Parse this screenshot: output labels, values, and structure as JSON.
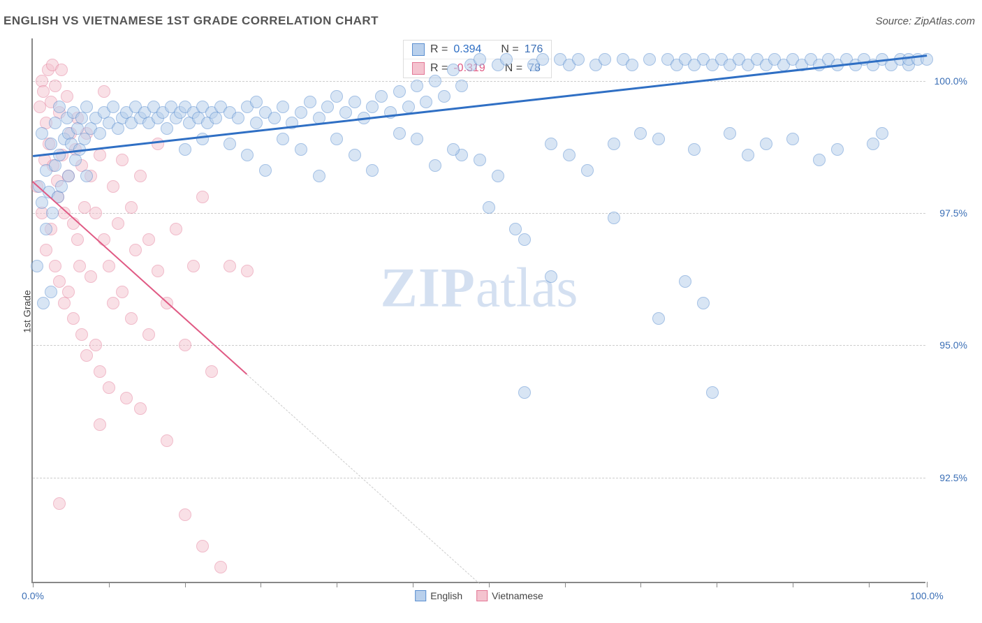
{
  "header": {
    "title": "ENGLISH VS VIETNAMESE 1ST GRADE CORRELATION CHART",
    "source": "Source: ZipAtlas.com"
  },
  "watermark": {
    "zip": "ZIP",
    "atlas": "atlas"
  },
  "chart": {
    "type": "scatter",
    "ylabel": "1st Grade",
    "background_color": "#ffffff",
    "grid_color": "#cccccc",
    "axis_color": "#888888",
    "label_color": "#3b6fb6",
    "xlim": [
      0,
      100
    ],
    "ylim": [
      90.5,
      100.8
    ],
    "xtick_label_first": "0.0%",
    "xtick_label_last": "100.0%",
    "xticks": [
      0,
      8.5,
      17,
      25.5,
      34,
      42.5,
      51,
      59.5,
      68,
      76.5,
      85,
      93.5,
      100
    ],
    "ytick_labels": [
      {
        "y": 92.5,
        "label": "92.5%"
      },
      {
        "y": 95.0,
        "label": "95.0%"
      },
      {
        "y": 97.5,
        "label": "97.5%"
      },
      {
        "y": 100.0,
        "label": "100.0%"
      }
    ],
    "marker_radius": 9,
    "marker_stroke_width": 1.5,
    "series": {
      "english": {
        "label": "English",
        "fill": "#b9d0ec",
        "stroke": "#5b8fd0",
        "fill_opacity": 0.55,
        "trend": {
          "x1": 0,
          "y1": 98.6,
          "x2": 100,
          "y2": 100.5,
          "color": "#2f6fc4",
          "width": 3,
          "dash": "none"
        },
        "r_value": "0.394",
        "n_value": "176",
        "r_color": "#2f6fc4",
        "points": [
          [
            0.5,
            96.5
          ],
          [
            0.7,
            98.0
          ],
          [
            1.0,
            97.7
          ],
          [
            1.0,
            99.0
          ],
          [
            1.2,
            95.8
          ],
          [
            1.5,
            98.3
          ],
          [
            1.5,
            97.2
          ],
          [
            1.8,
            97.9
          ],
          [
            2.0,
            98.8
          ],
          [
            2.0,
            96.0
          ],
          [
            2.2,
            97.5
          ],
          [
            2.5,
            99.2
          ],
          [
            2.5,
            98.4
          ],
          [
            2.8,
            97.8
          ],
          [
            3.0,
            98.6
          ],
          [
            3.0,
            99.5
          ],
          [
            3.2,
            98.0
          ],
          [
            3.5,
            98.9
          ],
          [
            3.8,
            99.3
          ],
          [
            4.0,
            98.2
          ],
          [
            4.0,
            99.0
          ],
          [
            4.3,
            98.8
          ],
          [
            4.5,
            99.4
          ],
          [
            4.8,
            98.5
          ],
          [
            5.0,
            99.1
          ],
          [
            5.2,
            98.7
          ],
          [
            5.5,
            99.3
          ],
          [
            5.8,
            98.9
          ],
          [
            6.0,
            99.5
          ],
          [
            6.0,
            98.2
          ],
          [
            6.5,
            99.1
          ],
          [
            7.0,
            99.3
          ],
          [
            7.5,
            99.0
          ],
          [
            8.0,
            99.4
          ],
          [
            8.5,
            99.2
          ],
          [
            9.0,
            99.5
          ],
          [
            9.5,
            99.1
          ],
          [
            10.0,
            99.3
          ],
          [
            10.5,
            99.4
          ],
          [
            11.0,
            99.2
          ],
          [
            11.5,
            99.5
          ],
          [
            12.0,
            99.3
          ],
          [
            12.5,
            99.4
          ],
          [
            13.0,
            99.2
          ],
          [
            13.5,
            99.5
          ],
          [
            14.0,
            99.3
          ],
          [
            14.5,
            99.4
          ],
          [
            15.0,
            99.1
          ],
          [
            15.5,
            99.5
          ],
          [
            16.0,
            99.3
          ],
          [
            16.5,
            99.4
          ],
          [
            17.0,
            99.5
          ],
          [
            17.5,
            99.2
          ],
          [
            18.0,
            99.4
          ],
          [
            18.5,
            99.3
          ],
          [
            19.0,
            99.5
          ],
          [
            19.5,
            99.2
          ],
          [
            20.0,
            99.4
          ],
          [
            20.5,
            99.3
          ],
          [
            21.0,
            99.5
          ],
          [
            22.0,
            99.4
          ],
          [
            23.0,
            99.3
          ],
          [
            24.0,
            99.5
          ],
          [
            25.0,
            99.2
          ],
          [
            25.0,
            99.6
          ],
          [
            26.0,
            99.4
          ],
          [
            27.0,
            99.3
          ],
          [
            28.0,
            99.5
          ],
          [
            29.0,
            99.2
          ],
          [
            30.0,
            99.4
          ],
          [
            31.0,
            99.6
          ],
          [
            32.0,
            99.3
          ],
          [
            33.0,
            99.5
          ],
          [
            34.0,
            99.7
          ],
          [
            35.0,
            99.4
          ],
          [
            36.0,
            99.6
          ],
          [
            37.0,
            99.3
          ],
          [
            38.0,
            99.5
          ],
          [
            39.0,
            99.7
          ],
          [
            40.0,
            99.4
          ],
          [
            41.0,
            99.8
          ],
          [
            42.0,
            99.5
          ],
          [
            43.0,
            99.9
          ],
          [
            44.0,
            99.6
          ],
          [
            45.0,
            100.0
          ],
          [
            46.0,
            99.7
          ],
          [
            47.0,
            100.2
          ],
          [
            48.0,
            99.9
          ],
          [
            49.0,
            100.3
          ],
          [
            48.0,
            98.6
          ],
          [
            50.0,
            98.5
          ],
          [
            51.0,
            97.6
          ],
          [
            52.0,
            100.3
          ],
          [
            53.0,
            100.4
          ],
          [
            54.0,
            97.2
          ],
          [
            55.0,
            97.0
          ],
          [
            55.0,
            94.1
          ],
          [
            56.0,
            100.3
          ],
          [
            57.0,
            100.4
          ],
          [
            58.0,
            98.8
          ],
          [
            58.0,
            96.3
          ],
          [
            59.0,
            100.4
          ],
          [
            60.0,
            98.6
          ],
          [
            60.0,
            100.3
          ],
          [
            61.0,
            100.4
          ],
          [
            62.0,
            98.3
          ],
          [
            63.0,
            100.3
          ],
          [
            64.0,
            100.4
          ],
          [
            65.0,
            98.8
          ],
          [
            65.0,
            97.4
          ],
          [
            66.0,
            100.4
          ],
          [
            67.0,
            100.3
          ],
          [
            68.0,
            99.0
          ],
          [
            69.0,
            100.4
          ],
          [
            70.0,
            98.9
          ],
          [
            70.0,
            95.5
          ],
          [
            71.0,
            100.4
          ],
          [
            72.0,
            100.3
          ],
          [
            73.0,
            100.4
          ],
          [
            73.0,
            96.2
          ],
          [
            74.0,
            98.7
          ],
          [
            75.0,
            100.4
          ],
          [
            75.0,
            95.8
          ],
          [
            76.0,
            94.1
          ],
          [
            76.0,
            100.3
          ],
          [
            77.0,
            100.4
          ],
          [
            78.0,
            100.3
          ],
          [
            78.0,
            99.0
          ],
          [
            79.0,
            100.4
          ],
          [
            80.0,
            98.6
          ],
          [
            80.0,
            100.3
          ],
          [
            81.0,
            100.4
          ],
          [
            82.0,
            100.3
          ],
          [
            82.0,
            98.8
          ],
          [
            83.0,
            100.4
          ],
          [
            84.0,
            100.3
          ],
          [
            85.0,
            100.4
          ],
          [
            85.0,
            98.9
          ],
          [
            86.0,
            100.3
          ],
          [
            87.0,
            100.4
          ],
          [
            88.0,
            100.3
          ],
          [
            88.0,
            98.5
          ],
          [
            89.0,
            100.4
          ],
          [
            90.0,
            100.3
          ],
          [
            90.0,
            98.7
          ],
          [
            91.0,
            100.4
          ],
          [
            92.0,
            100.3
          ],
          [
            93.0,
            100.4
          ],
          [
            94.0,
            100.3
          ],
          [
            94.0,
            98.8
          ],
          [
            95.0,
            100.4
          ],
          [
            95.0,
            99.0
          ],
          [
            96.0,
            100.3
          ],
          [
            97.0,
            100.4
          ],
          [
            98.0,
            100.3
          ],
          [
            98.0,
            100.4
          ],
          [
            99.0,
            100.4
          ],
          [
            100.0,
            100.4
          ],
          [
            74.0,
            100.3
          ],
          [
            50.0,
            100.4
          ],
          [
            52.0,
            98.2
          ],
          [
            47.0,
            98.7
          ],
          [
            45.0,
            98.4
          ],
          [
            43.0,
            98.9
          ],
          [
            41.0,
            99.0
          ],
          [
            38.0,
            98.3
          ],
          [
            36.0,
            98.6
          ],
          [
            34.0,
            98.9
          ],
          [
            32.0,
            98.2
          ],
          [
            30.0,
            98.7
          ],
          [
            28.0,
            98.9
          ],
          [
            26.0,
            98.3
          ],
          [
            24.0,
            98.6
          ],
          [
            22.0,
            98.8
          ],
          [
            19.0,
            98.9
          ],
          [
            17.0,
            98.7
          ]
        ]
      },
      "vietnamese": {
        "label": "Vietnamese",
        "fill": "#f4c3cf",
        "stroke": "#e37795",
        "fill_opacity": 0.5,
        "trend": {
          "x1": 0,
          "y1": 98.1,
          "x2": 50,
          "y2": 90.5,
          "color": "#e05a84",
          "width": 2.5,
          "dash": "none",
          "extend_x2": 50,
          "extend_dash": "4,4"
        },
        "r_value": "-0.319",
        "n_value": "78",
        "r_color": "#e05a84",
        "points": [
          [
            0.5,
            98.0
          ],
          [
            0.8,
            99.5
          ],
          [
            1.0,
            100.0
          ],
          [
            1.0,
            97.5
          ],
          [
            1.2,
            99.8
          ],
          [
            1.3,
            98.5
          ],
          [
            1.5,
            99.2
          ],
          [
            1.5,
            96.8
          ],
          [
            1.7,
            100.2
          ],
          [
            1.8,
            98.8
          ],
          [
            2.0,
            99.6
          ],
          [
            2.0,
            97.2
          ],
          [
            2.2,
            100.3
          ],
          [
            2.3,
            98.4
          ],
          [
            2.5,
            99.9
          ],
          [
            2.5,
            96.5
          ],
          [
            2.7,
            98.1
          ],
          [
            2.8,
            97.8
          ],
          [
            3.0,
            99.4
          ],
          [
            3.0,
            96.2
          ],
          [
            3.2,
            100.2
          ],
          [
            3.3,
            98.6
          ],
          [
            3.5,
            97.5
          ],
          [
            3.5,
            95.8
          ],
          [
            3.8,
            99.7
          ],
          [
            4.0,
            98.2
          ],
          [
            4.0,
            96.0
          ],
          [
            4.2,
            99.0
          ],
          [
            4.5,
            97.3
          ],
          [
            4.5,
            95.5
          ],
          [
            4.8,
            98.7
          ],
          [
            5.0,
            97.0
          ],
          [
            5.0,
            99.3
          ],
          [
            5.2,
            96.5
          ],
          [
            5.5,
            98.4
          ],
          [
            5.5,
            95.2
          ],
          [
            5.8,
            97.6
          ],
          [
            6.0,
            99.0
          ],
          [
            6.0,
            94.8
          ],
          [
            6.5,
            98.2
          ],
          [
            6.5,
            96.3
          ],
          [
            7.0,
            97.5
          ],
          [
            7.0,
            95.0
          ],
          [
            7.5,
            98.6
          ],
          [
            7.5,
            94.5
          ],
          [
            8.0,
            97.0
          ],
          [
            8.0,
            99.8
          ],
          [
            8.5,
            96.5
          ],
          [
            8.5,
            94.2
          ],
          [
            9.0,
            98.0
          ],
          [
            9.0,
            95.8
          ],
          [
            9.5,
            97.3
          ],
          [
            10.0,
            96.0
          ],
          [
            10.0,
            98.5
          ],
          [
            10.5,
            94.0
          ],
          [
            11.0,
            97.6
          ],
          [
            11.0,
            95.5
          ],
          [
            11.5,
            96.8
          ],
          [
            12.0,
            98.2
          ],
          [
            12.0,
            93.8
          ],
          [
            13.0,
            97.0
          ],
          [
            13.0,
            95.2
          ],
          [
            14.0,
            96.4
          ],
          [
            14.0,
            98.8
          ],
          [
            15.0,
            95.8
          ],
          [
            15.0,
            93.2
          ],
          [
            16.0,
            97.2
          ],
          [
            17.0,
            95.0
          ],
          [
            17.0,
            91.8
          ],
          [
            18.0,
            96.5
          ],
          [
            19.0,
            91.2
          ],
          [
            19.0,
            97.8
          ],
          [
            20.0,
            94.5
          ],
          [
            21.0,
            90.8
          ],
          [
            22.0,
            96.5
          ],
          [
            24.0,
            96.4
          ],
          [
            3.0,
            92.0
          ],
          [
            7.5,
            93.5
          ]
        ]
      }
    }
  },
  "legend_top": {
    "r_label": "R =",
    "n_label": "N ="
  },
  "legend_bottom": {
    "items": [
      {
        "label": "English",
        "fill": "#b9d0ec",
        "stroke": "#5b8fd0"
      },
      {
        "label": "Vietnamese",
        "fill": "#f4c3cf",
        "stroke": "#e37795"
      }
    ]
  }
}
